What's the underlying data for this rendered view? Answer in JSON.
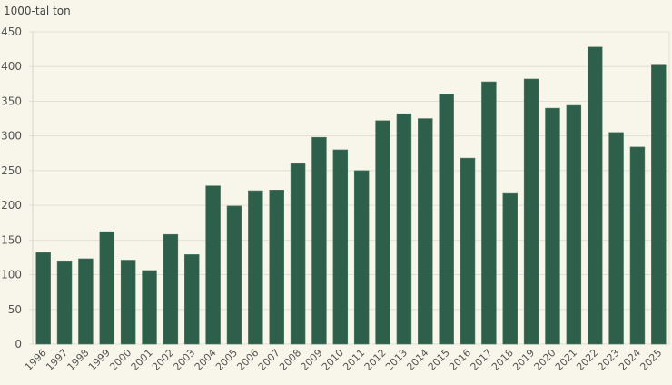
{
  "chart_data": {
    "type": "bar",
    "title": "",
    "unit_label": "1000-tal ton",
    "xlabel": "",
    "ylabel": "1000-tal ton",
    "ylim": [
      0,
      450
    ],
    "yticks": [
      0,
      50,
      100,
      150,
      200,
      250,
      300,
      350,
      400,
      450
    ],
    "grid": true,
    "legend": null,
    "bar_color": "#2d5f4a",
    "categories": [
      "1996",
      "1997",
      "1998",
      "1999",
      "2000",
      "2001",
      "2002",
      "2003",
      "2004",
      "2005",
      "2006",
      "2007",
      "2008",
      "2009",
      "2010",
      "2011",
      "2012",
      "2013",
      "2014",
      "2015",
      "2016",
      "2017",
      "2018",
      "2019",
      "2020",
      "2021",
      "2022",
      "2023",
      "2024",
      "2025"
    ],
    "values": [
      132,
      120,
      123,
      162,
      121,
      106,
      158,
      129,
      228,
      199,
      221,
      222,
      260,
      298,
      280,
      250,
      322,
      332,
      325,
      360,
      268,
      378,
      217,
      382,
      340,
      344,
      428,
      305,
      284,
      402
    ]
  }
}
